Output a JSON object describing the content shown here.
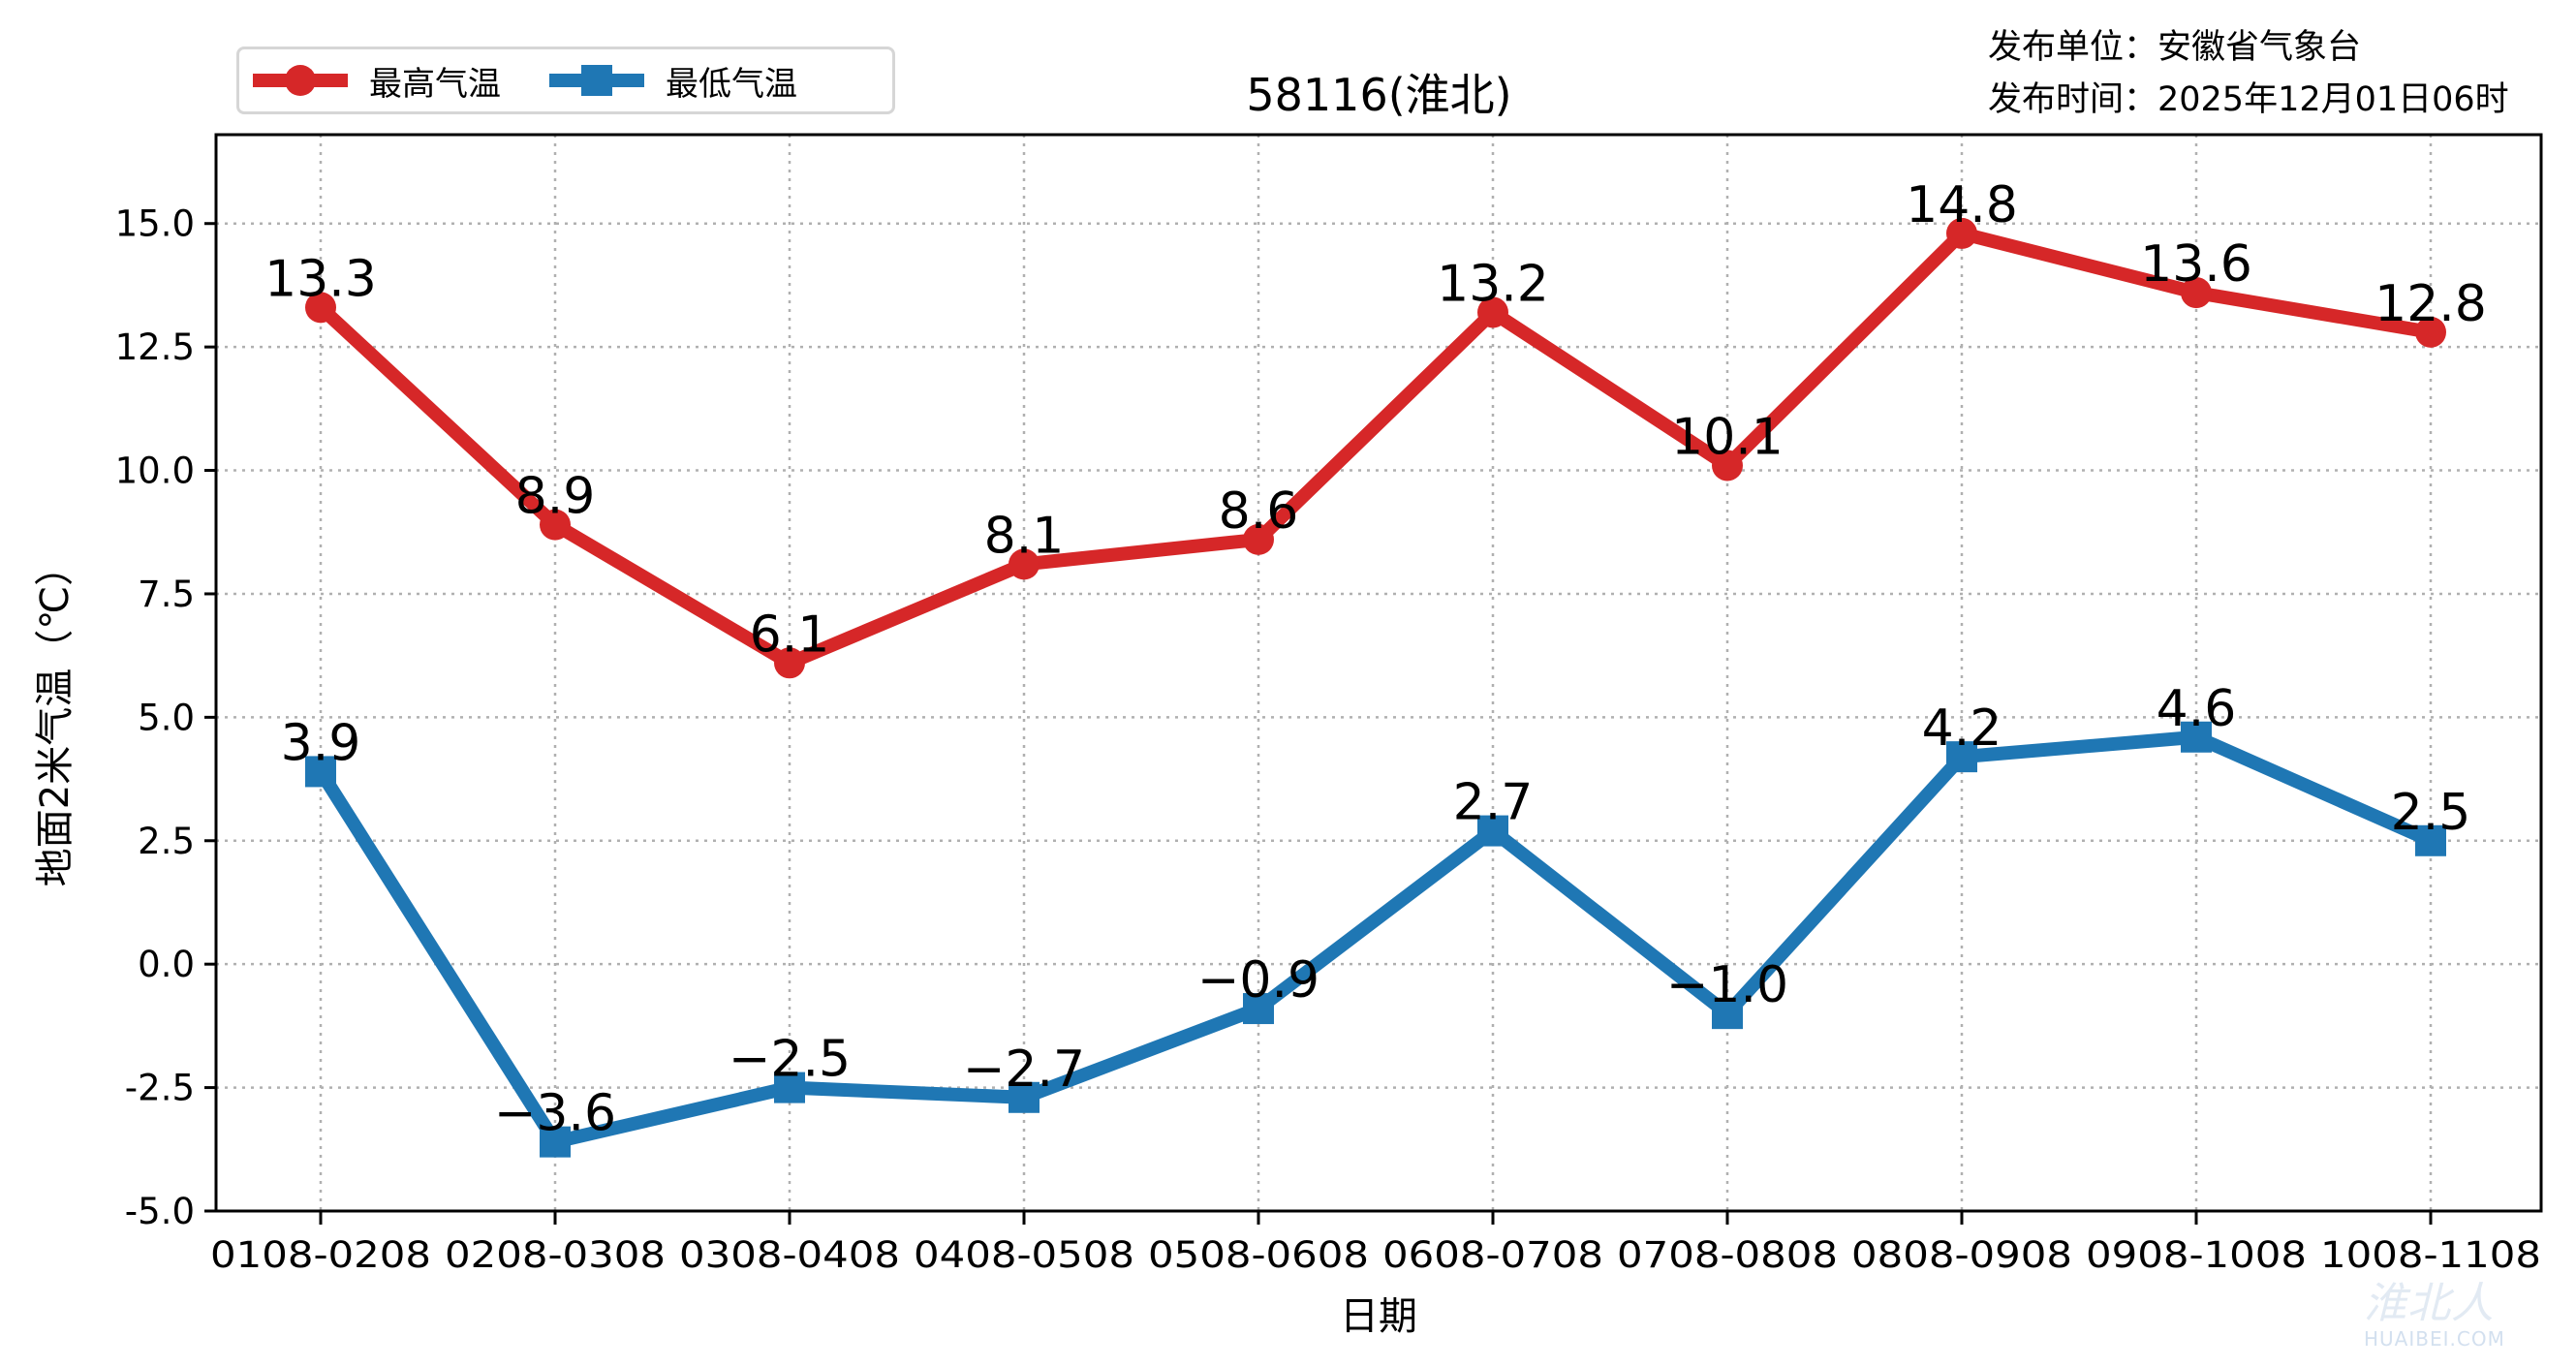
{
  "header": {
    "title": "58116(淮北)",
    "publisher_line": "发布单位：安徽省气象台",
    "time_line": "发布时间：2025年12月01日06时"
  },
  "legend": {
    "items": [
      {
        "label": "最高气温",
        "color": "#d62728",
        "marker": "circle"
      },
      {
        "label": "最低气温",
        "color": "#1f77b4",
        "marker": "square"
      }
    ]
  },
  "watermark": {
    "cn": "淮北人",
    "en": "HUAIBEI.COM"
  },
  "chart_data": {
    "type": "line",
    "title": "58116(淮北)",
    "xlabel": "日期",
    "ylabel": "地面2米气温（℃）",
    "categories": [
      "0108-0208",
      "0208-0308",
      "0308-0408",
      "0408-0508",
      "0508-0608",
      "0608-0708",
      "0708-0808",
      "0808-0908",
      "0908-1008",
      "1008-1108"
    ],
    "series": [
      {
        "name": "最高气温",
        "color": "#d62728",
        "marker": "circle",
        "values": [
          13.3,
          8.9,
          6.1,
          8.1,
          8.6,
          13.2,
          10.1,
          14.8,
          13.6,
          12.8
        ]
      },
      {
        "name": "最低气温",
        "color": "#1f77b4",
        "marker": "square",
        "values": [
          3.9,
          -3.6,
          -2.5,
          -2.7,
          -0.9,
          2.7,
          -1.0,
          4.2,
          4.6,
          2.5
        ]
      }
    ],
    "yticks": [
      -5.0,
      -2.5,
      0.0,
      2.5,
      5.0,
      7.5,
      10.0,
      12.5,
      15.0
    ],
    "ytick_labels": [
      "-5.0",
      "-2.5",
      "0.0",
      "2.5",
      "5.0",
      "7.5",
      "10.0",
      "12.5",
      "15.0"
    ],
    "ylim": [
      -5.0,
      16.8
    ],
    "grid": true,
    "grid_style": "dotted",
    "legend_position": "upper-left-outside",
    "data_labels": true
  }
}
